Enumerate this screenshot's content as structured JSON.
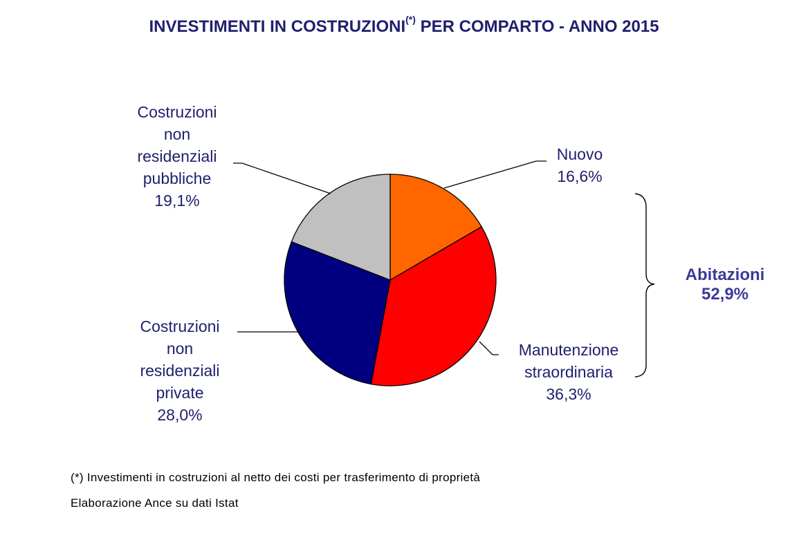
{
  "title_main": "INVESTIMENTI IN COSTRUZIONI",
  "title_sup": "(*)",
  "title_rest": " PER COMPARTO - ANNO 2015",
  "chart_data": {
    "type": "pie",
    "title": "INVESTIMENTI IN COSTRUZIONI(*) PER COMPARTO - ANNO 2015",
    "slices": [
      {
        "label_lines": [
          "Nuovo"
        ],
        "value": 16.6,
        "value_text": "16,6%",
        "color": "#ff6600"
      },
      {
        "label_lines": [
          "Manutenzione",
          "straordinaria"
        ],
        "value": 36.3,
        "value_text": "36,3%",
        "color": "#ff0000"
      },
      {
        "label_lines": [
          "Costruzioni",
          "non",
          "residenziali",
          "private"
        ],
        "value": 28.0,
        "value_text": "28,0%",
        "color": "#000080"
      },
      {
        "label_lines": [
          "Costruzioni",
          "non",
          "residenziali",
          "pubbliche"
        ],
        "value": 19.1,
        "value_text": "19,1%",
        "color": "#c0c0c0"
      }
    ],
    "group": {
      "label": "Abitazioni",
      "value_text": "52,9%"
    }
  },
  "notes": {
    "footnote": "(*) Investimenti in costruzioni al netto dei costi per trasferimento di proprietà",
    "source": "Elaborazione Ance su dati Istat"
  }
}
